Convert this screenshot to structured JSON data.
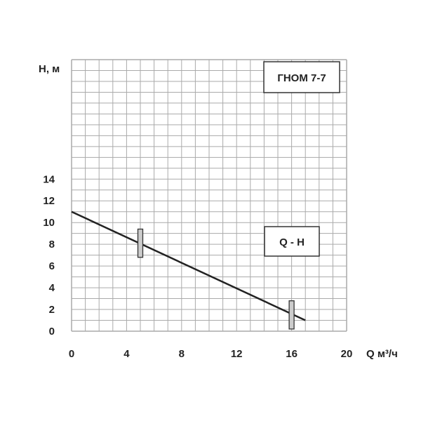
{
  "chart_data": {
    "type": "line",
    "title": "ГНОМ 7-7",
    "xlabel": "Q м³/ч",
    "ylabel": "H, м",
    "xlim": [
      0,
      20
    ],
    "ylim": [
      0,
      25
    ],
    "grid": true,
    "x_ticks": [
      "0",
      "4",
      "8",
      "12",
      "16",
      "20"
    ],
    "y_ticks": [
      "0",
      "2",
      "4",
      "6",
      "8",
      "10",
      "12",
      "14"
    ],
    "series": [
      {
        "name": "Q - H",
        "x": [
          0,
          17
        ],
        "y": [
          11,
          1
        ],
        "color": "#222222"
      }
    ],
    "operating_range_markers": [
      {
        "x": 5,
        "y_low": 6.8,
        "y_high": 9.4
      },
      {
        "x": 16,
        "y_low": 0.2,
        "y_high": 2.8
      }
    ],
    "legend": "right"
  }
}
